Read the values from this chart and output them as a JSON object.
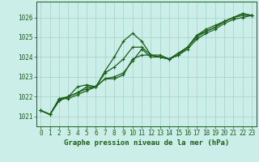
{
  "xlabel": "Graphe pression niveau de la mer (hPa)",
  "bg_color": "#cceee8",
  "grid_color": "#aad4ce",
  "line_color": "#1a5e1a",
  "ylim": [
    1020.5,
    1026.8
  ],
  "xlim": [
    -0.5,
    23.5
  ],
  "yticks": [
    1021,
    1022,
    1023,
    1024,
    1025,
    1026
  ],
  "xticks": [
    0,
    1,
    2,
    3,
    4,
    5,
    6,
    7,
    8,
    9,
    10,
    11,
    12,
    13,
    14,
    15,
    16,
    17,
    18,
    19,
    20,
    21,
    22,
    23
  ],
  "series": [
    [
      1021.3,
      1021.1,
      1021.9,
      1021.9,
      1022.1,
      1022.3,
      1022.5,
      1022.9,
      1022.9,
      1023.1,
      1023.9,
      1024.1,
      1024.1,
      1024.0,
      1023.9,
      1024.1,
      1024.4,
      1024.9,
      1025.2,
      1025.4,
      1025.7,
      1025.9,
      1026.0,
      1026.1
    ],
    [
      1021.3,
      1021.1,
      1021.9,
      1022.0,
      1022.2,
      1022.5,
      1022.5,
      1023.2,
      1023.5,
      1023.9,
      1024.5,
      1024.5,
      1024.1,
      1024.0,
      1023.9,
      1024.2,
      1024.5,
      1025.1,
      1025.3,
      1025.5,
      1025.8,
      1026.0,
      1026.1,
      1026.1
    ],
    [
      1021.3,
      1021.1,
      1021.8,
      1022.0,
      1022.5,
      1022.6,
      1022.5,
      1023.3,
      1024.0,
      1024.8,
      1025.2,
      1024.8,
      1024.1,
      1024.1,
      1023.9,
      1024.1,
      1024.5,
      1025.1,
      1025.4,
      1025.6,
      1025.8,
      1026.0,
      1026.2,
      1026.1
    ],
    [
      1021.3,
      1021.1,
      1021.8,
      1022.0,
      1022.2,
      1022.4,
      1022.5,
      1022.9,
      1023.0,
      1023.2,
      1023.8,
      1024.4,
      1024.0,
      1024.0,
      1023.9,
      1024.2,
      1024.5,
      1025.0,
      1025.3,
      1025.5,
      1025.8,
      1026.0,
      1026.2,
      1026.1
    ]
  ],
  "xlabel_fontsize": 6.5,
  "tick_fontsize": 5.5,
  "linewidth": 0.9,
  "markersize": 2.8
}
